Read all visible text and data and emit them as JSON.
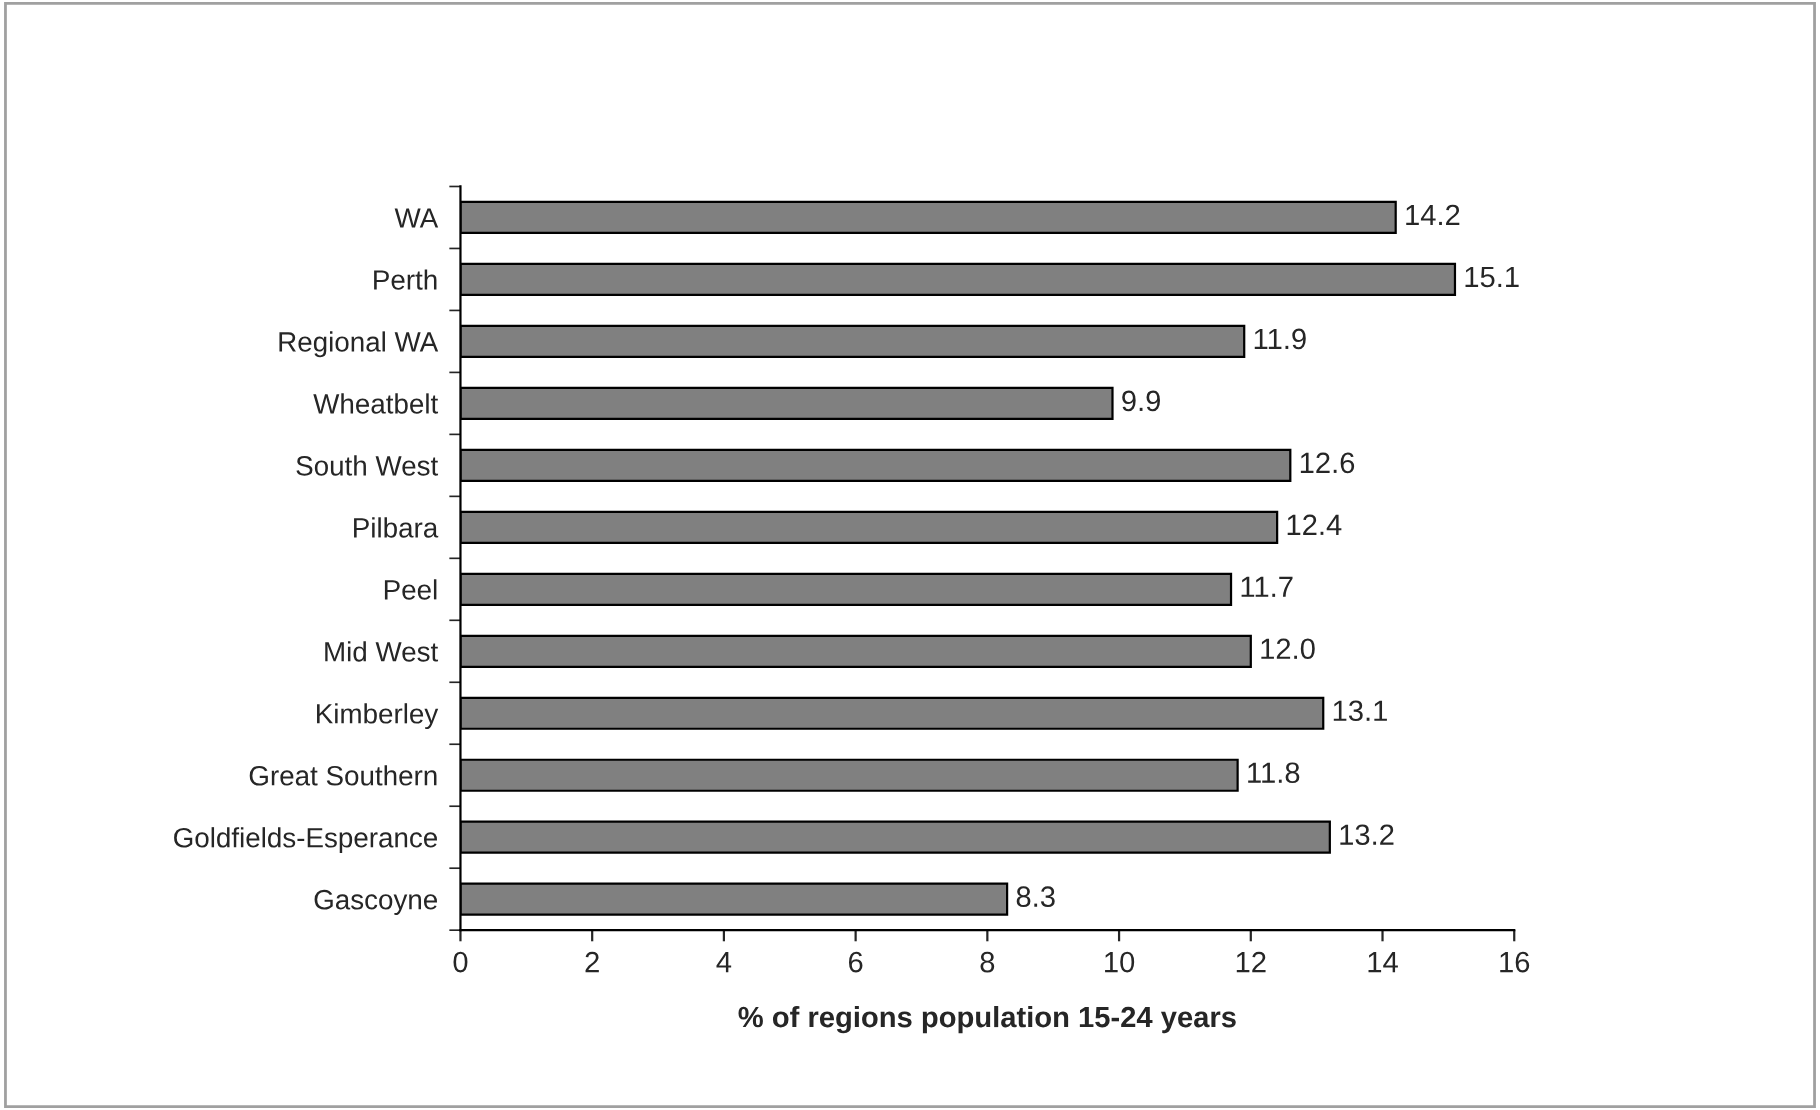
{
  "chart_data": {
    "type": "bar",
    "orientation": "horizontal",
    "xlabel": "% of regions population 15-24 years",
    "categories": [
      "WA",
      "Perth",
      "Regional WA",
      "Wheatbelt",
      "South West",
      "Pilbara",
      "Peel",
      "Mid West",
      "Kimberley",
      "Great Southern",
      "Goldfields-Esperance",
      "Gascoyne"
    ],
    "values": [
      14.2,
      15.1,
      11.9,
      9.9,
      12.6,
      12.4,
      11.7,
      12.0,
      13.1,
      11.8,
      13.2,
      8.3
    ],
    "value_labels": [
      "14.2",
      "15.1",
      "11.9",
      "9.9",
      "12.6",
      "12.4",
      "11.7",
      "12.0",
      "13.1",
      "11.8",
      "13.2",
      "8.3"
    ],
    "color": "#808080",
    "xlim": [
      0,
      16
    ],
    "xticks": [
      0,
      2,
      4,
      6,
      8,
      10,
      12,
      14,
      16
    ],
    "grid": false
  }
}
